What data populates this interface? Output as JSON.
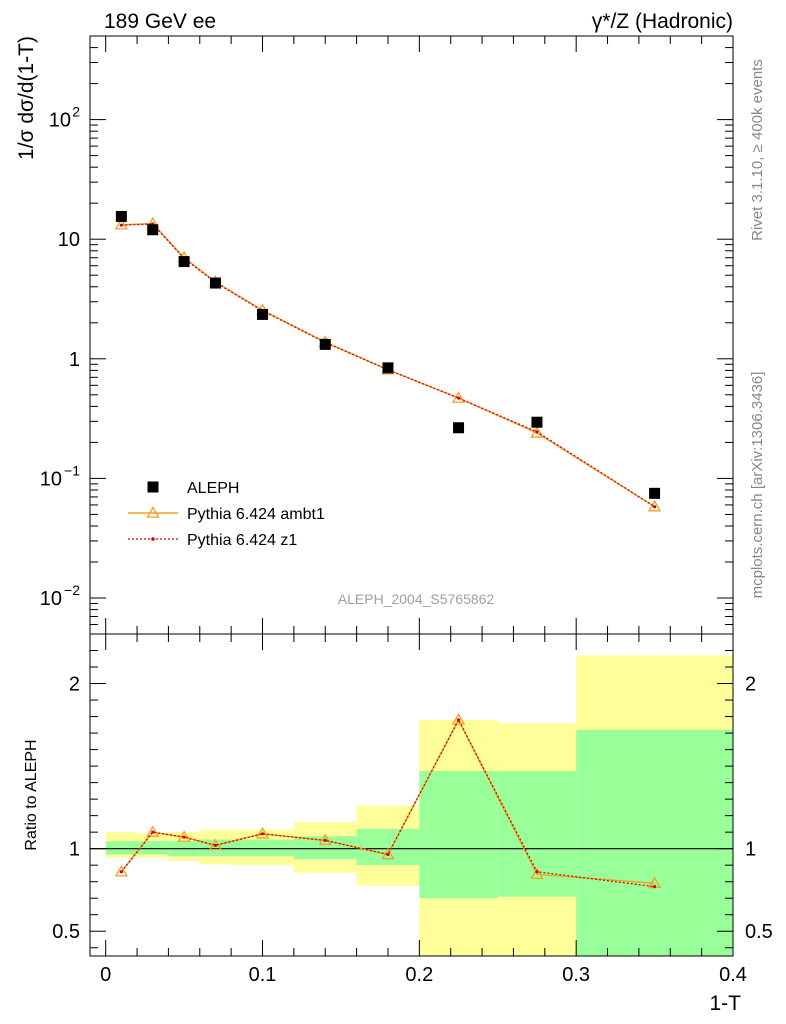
{
  "header": {
    "left_label": "189 GeV ee",
    "right_label": "γ*/Z (Hadronic)"
  },
  "side_labels": {
    "top": "Rivet 3.1.10, ≥ 400k events",
    "bottom": "mcplots.cern.ch [arXiv:1306.3436]"
  },
  "analysis_id": "ALEPH_2004_S5765862",
  "chart_data": [
    {
      "type": "scatter",
      "panel": "main",
      "ylabel": "1/σ  dσ/d(1-T)",
      "yscale": "log",
      "ylim": [
        0.005,
        500
      ],
      "xlim": [
        -0.01,
        0.4
      ],
      "y_ticks": [
        {
          "value": 0.01,
          "label": "10",
          "sup": "−2"
        },
        {
          "value": 0.1,
          "label": "10",
          "sup": "−1"
        },
        {
          "value": 1,
          "label": "1",
          "sup": ""
        },
        {
          "value": 10,
          "label": "10",
          "sup": ""
        },
        {
          "value": 100,
          "label": "10",
          "sup": "2"
        }
      ],
      "legend_position": "bottom-left",
      "series": [
        {
          "name": "ALEPH",
          "style": "square-marker",
          "color": "#000000",
          "x": [
            0.01,
            0.03,
            0.05,
            0.07,
            0.1,
            0.14,
            0.18,
            0.225,
            0.275,
            0.35
          ],
          "y": [
            15.5,
            12.0,
            6.5,
            4.3,
            2.35,
            1.32,
            0.84,
            0.265,
            0.295,
            0.075
          ]
        },
        {
          "name": "Pythia 6.424 ambt1",
          "style": "solid-line-triangle",
          "color": "#f0a020",
          "x": [
            0.01,
            0.03,
            0.05,
            0.07,
            0.1,
            0.14,
            0.18,
            0.225,
            0.275,
            0.35
          ],
          "y": [
            13.2,
            13.5,
            7.0,
            4.4,
            2.55,
            1.38,
            0.81,
            0.47,
            0.24,
            0.058
          ]
        },
        {
          "name": "Pythia 6.424 z1",
          "style": "dotted-line-dot",
          "color": "#dd0000",
          "x": [
            0.01,
            0.03,
            0.05,
            0.07,
            0.1,
            0.14,
            0.18,
            0.225,
            0.275,
            0.35
          ],
          "y": [
            13.1,
            13.4,
            6.9,
            4.35,
            2.52,
            1.37,
            0.81,
            0.47,
            0.245,
            0.058
          ]
        }
      ]
    },
    {
      "type": "line",
      "panel": "ratio",
      "ylabel": "Ratio to ALEPH",
      "xlabel": "1-T",
      "xlim": [
        -0.01,
        0.4
      ],
      "ylim": [
        0.35,
        2.3
      ],
      "x_ticks": [
        {
          "value": 0,
          "label": "0"
        },
        {
          "value": 0.1,
          "label": "0.1"
        },
        {
          "value": 0.2,
          "label": "0.2"
        },
        {
          "value": 0.3,
          "label": "0.3"
        },
        {
          "value": 0.4,
          "label": "0.4"
        }
      ],
      "y_ticks": [
        {
          "value": 0.5,
          "label": "0.5"
        },
        {
          "value": 1,
          "label": "1"
        },
        {
          "value": 2,
          "label": "2"
        }
      ],
      "bands": [
        {
          "x0": 0.0,
          "x1": 0.02,
          "stat": [
            0.965,
            1.045
          ],
          "total": [
            0.945,
            1.1
          ]
        },
        {
          "x0": 0.02,
          "x1": 0.04,
          "stat": [
            0.965,
            1.045
          ],
          "total": [
            0.945,
            1.09
          ]
        },
        {
          "x0": 0.04,
          "x1": 0.06,
          "stat": [
            0.955,
            1.045
          ],
          "total": [
            0.925,
            1.1
          ]
        },
        {
          "x0": 0.06,
          "x1": 0.08,
          "stat": [
            0.955,
            1.055
          ],
          "total": [
            0.905,
            1.115
          ]
        },
        {
          "x0": 0.08,
          "x1": 0.12,
          "stat": [
            0.955,
            1.055
          ],
          "total": [
            0.9,
            1.115
          ]
        },
        {
          "x0": 0.12,
          "x1": 0.16,
          "stat": [
            0.935,
            1.075
          ],
          "total": [
            0.855,
            1.16
          ]
        },
        {
          "x0": 0.16,
          "x1": 0.2,
          "stat": [
            0.9,
            1.12
          ],
          "total": [
            0.775,
            1.26
          ]
        },
        {
          "x0": 0.2,
          "x1": 0.25,
          "stat": [
            0.7,
            1.47
          ],
          "total": [
            0.34,
            1.78
          ]
        },
        {
          "x0": 0.25,
          "x1": 0.3,
          "stat": [
            0.71,
            1.47
          ],
          "total": [
            0.34,
            1.76
          ]
        },
        {
          "x0": 0.3,
          "x1": 0.4,
          "stat": [
            0.34,
            1.72
          ],
          "total": [
            0.34,
            2.17
          ]
        }
      ],
      "reference_line": 1,
      "series": [
        {
          "name": "Pythia 6.424 ambt1",
          "color": "#f0a020",
          "x": [
            0.01,
            0.03,
            0.05,
            0.07,
            0.1,
            0.14,
            0.18,
            0.225,
            0.275,
            0.35
          ],
          "y": [
            0.86,
            1.1,
            1.07,
            1.02,
            1.09,
            1.05,
            0.965,
            1.78,
            0.845,
            0.79
          ]
        },
        {
          "name": "Pythia 6.424 z1",
          "color": "#dd0000",
          "x": [
            0.01,
            0.03,
            0.05,
            0.07,
            0.1,
            0.14,
            0.18,
            0.225,
            0.275,
            0.35
          ],
          "y": [
            0.86,
            1.1,
            1.07,
            1.02,
            1.09,
            1.05,
            0.965,
            1.78,
            0.86,
            0.77
          ]
        }
      ]
    }
  ]
}
